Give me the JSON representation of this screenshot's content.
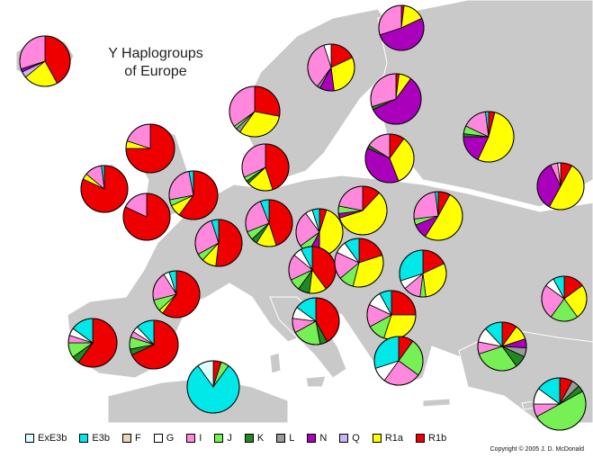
{
  "title_line1": "Y Haplogroups",
  "title_line2": "of Europe",
  "copyright": "Copyright © 2005  J. D. McDonald",
  "colors": {
    "ExE3b": "#d9ffff",
    "E3b": "#00e8e8",
    "F": "#e8d8b8",
    "G": "#ffffff",
    "I": "#ff88dd",
    "J": "#77f055",
    "K": "#228822",
    "L": "#999999",
    "N": "#aa00bb",
    "Q": "#c8b4f8",
    "R1a": "#ffff00",
    "R1b": "#ee0000"
  },
  "legend": [
    {
      "key": "ExE3b",
      "label": "ExE3b"
    },
    {
      "key": "E3b",
      "label": "E3b"
    },
    {
      "key": "F",
      "label": "F"
    },
    {
      "key": "G",
      "label": "G"
    },
    {
      "key": "I",
      "label": "I"
    },
    {
      "key": "J",
      "label": "J"
    },
    {
      "key": "K",
      "label": "K"
    },
    {
      "key": "L",
      "label": "L"
    },
    {
      "key": "N",
      "label": "N"
    },
    {
      "key": "Q",
      "label": "Q"
    },
    {
      "key": "R1a",
      "label": "R1a"
    },
    {
      "key": "R1b",
      "label": "R1b"
    }
  ],
  "regions": [
    {
      "id": "iceland",
      "shares": {
        "R1b": 42,
        "I": 30,
        "R1a": 22,
        "Q": 4,
        "N": 2
      }
    },
    {
      "id": "finnmark",
      "shares": {
        "I": 30,
        "N": 52,
        "R1a": 16,
        "R1b": 2
      }
    },
    {
      "id": "north-sweden",
      "shares": {
        "R1b": 18,
        "I": 35,
        "N": 10,
        "R1a": 30,
        "L": 2,
        "G": 5
      }
    },
    {
      "id": "finland",
      "shares": {
        "I": 30,
        "N": 58,
        "R1a": 8,
        "R1b": 2,
        "K": 2
      }
    },
    {
      "id": "norway",
      "shares": {
        "R1b": 28,
        "I": 35,
        "L": 3,
        "R1a": 32,
        "J": 2
      }
    },
    {
      "id": "north-russia",
      "shares": {
        "R1b": 4,
        "E3b": 2,
        "I": 16,
        "J": 5,
        "K": 2,
        "N": 18,
        "R1a": 53
      }
    },
    {
      "id": "baltic",
      "shares": {
        "R1b": 10,
        "I": 16,
        "N": 38,
        "K": 2,
        "R1a": 34
      }
    },
    {
      "id": "central-russia",
      "shares": {
        "R1b": 8,
        "G": 2,
        "I": 5,
        "N": 35,
        "R1a": 50
      }
    },
    {
      "id": "scotland",
      "shares": {
        "R1b": 75,
        "I": 20,
        "R1a": 5
      }
    },
    {
      "id": "ireland",
      "shares": {
        "R1b": 82,
        "I": 12,
        "E3b": 2,
        "R1a": 4
      }
    },
    {
      "id": "england",
      "shares": {
        "R1b": 60,
        "I": 25,
        "R1a": 8,
        "E3b": 3,
        "J": 4
      }
    },
    {
      "id": "wales",
      "shares": {
        "R1b": 82,
        "I": 18
      }
    },
    {
      "id": "denmark",
      "shares": {
        "R1b": 45,
        "I": 32,
        "R1a": 18,
        "J": 3,
        "K": 2
      }
    },
    {
      "id": "netherlands",
      "shares": {
        "R1b": 52,
        "I": 28,
        "R1a": 10,
        "E3b": 5,
        "J": 5
      }
    },
    {
      "id": "north-germany",
      "shares": {
        "R1b": 45,
        "I": 25,
        "E3b": 6,
        "R1a": 14,
        "J": 6,
        "K": 4
      }
    },
    {
      "id": "poland",
      "shares": {
        "R1b": 12,
        "I": 22,
        "R1a": 58,
        "N": 3,
        "J": 5
      }
    },
    {
      "id": "belarus",
      "shares": {
        "R1b": 8,
        "E3b": 2,
        "I": 25,
        "J": 4,
        "N": 10,
        "R1a": 51
      }
    },
    {
      "id": "ukraine",
      "shares": {
        "R1b": 5,
        "I": 25,
        "R1a": 45,
        "N": 8,
        "J": 7,
        "E3b": 5,
        "G": 5
      }
    },
    {
      "id": "france",
      "shares": {
        "R1b": 60,
        "I": 20,
        "E3b": 5,
        "J": 8,
        "G": 4,
        "R1a": 3
      }
    },
    {
      "id": "south-germany",
      "shares": {
        "R1b": 40,
        "I": 18,
        "R1a": 12,
        "G": 6,
        "J": 8,
        "E3b": 8,
        "K": 8
      }
    },
    {
      "id": "czechia",
      "shares": {
        "R1b": 20,
        "I": 18,
        "R1a": 34,
        "G": 8,
        "J": 10,
        "E3b": 10
      }
    },
    {
      "id": "slovakia",
      "shares": {
        "R1b": 18,
        "E3b": 30,
        "I": 12,
        "J": 4,
        "R1a": 30,
        "G": 6
      }
    },
    {
      "id": "aquitaine",
      "shares": {
        "R1b": 88,
        "I": 6,
        "E3b": 3,
        "J": 3
      }
    },
    {
      "id": "alps",
      "shares": {
        "R1b": 25,
        "E3b": 8,
        "I": 15,
        "J": 12,
        "G": 10,
        "R1a": 30
      }
    },
    {
      "id": "romania",
      "shares": {
        "R1b": 15,
        "E3b": 8,
        "I": 25,
        "J": 20,
        "R1a": 25,
        "G": 7
      }
    },
    {
      "id": "caucasus",
      "shares": {
        "R1b": 15,
        "F": 10,
        "G": 25,
        "J": 25,
        "K": 5,
        "N": 2,
        "R1a": 12,
        "I": 3,
        "E3b": 3
      }
    },
    {
      "id": "italy",
      "shares": {
        "R1b": 42,
        "E3b": 15,
        "I": 10,
        "G": 8,
        "J": 20,
        "K": 5
      }
    },
    {
      "id": "serbia",
      "shares": {
        "R1b": 8,
        "E3b": 20,
        "J": 6,
        "I": 46,
        "R1a": 20
      }
    },
    {
      "id": "west-iberia",
      "shares": {
        "R1b": 60,
        "E3b": 15,
        "I": 5,
        "J": 10,
        "G": 5,
        "K": 5
      }
    },
    {
      "id": "east-iberia",
      "shares": {
        "R1b": 68,
        "E3b": 12,
        "I": 4,
        "J": 8,
        "G": 4,
        "K": 4
      }
    },
    {
      "id": "greece",
      "shares": {
        "R1b": 10,
        "E3b": 30,
        "I": 25,
        "J": 25,
        "G": 10
      }
    },
    {
      "id": "turkey",
      "shares": {
        "R1b": 10,
        "E3b": 12,
        "I": 8,
        "J": 30,
        "G": 10,
        "K": 8,
        "R1a": 10,
        "L": 6,
        "N": 6
      }
    },
    {
      "id": "north-africa",
      "shares": {
        "E3b": 80,
        "ExE3b": 10,
        "R1b": 5,
        "J": 5
      }
    },
    {
      "id": "levant",
      "shares": {
        "J": 50,
        "E3b": 15,
        "I": 8,
        "G": 10,
        "R1b": 8,
        "K": 4,
        "L": 5
      }
    }
  ]
}
